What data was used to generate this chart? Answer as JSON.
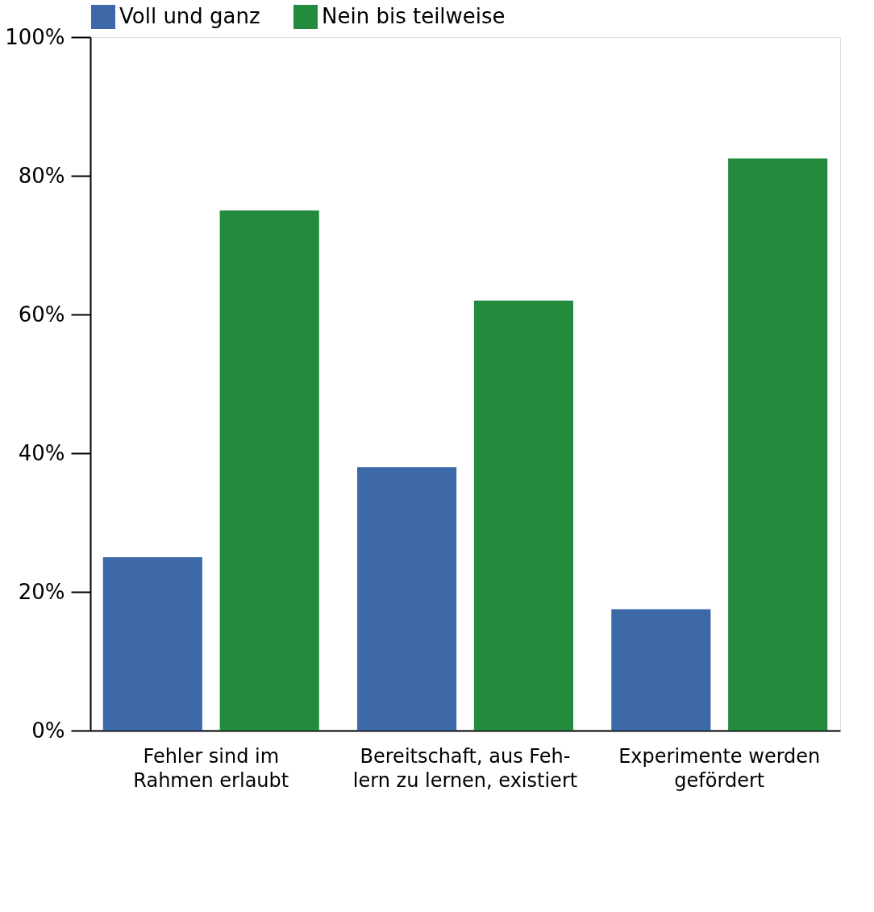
{
  "chart_data": {
    "type": "bar",
    "categories": [
      "Fehler sind im\nRahmen erlaubt",
      "Bereitschaft, aus Feh-\nlern zu lernen, existiert",
      "Experimente werden\ngefördert"
    ],
    "series": [
      {
        "name": "Voll und ganz",
        "color": "#3e69a8",
        "values": [
          25,
          38,
          17.5
        ]
      },
      {
        "name": "Nein bis teilweise",
        "color": "#238a3e",
        "values": [
          75,
          62,
          82.5
        ]
      }
    ],
    "ylim": [
      0,
      100
    ],
    "yticks": [
      {
        "value": 0,
        "label": "0%"
      },
      {
        "value": 20,
        "label": "20%"
      },
      {
        "value": 40,
        "label": "40%"
      },
      {
        "value": 60,
        "label": "60%"
      },
      {
        "value": 80,
        "label": "80%"
      },
      {
        "value": 100,
        "label": "100%"
      }
    ],
    "grid": false,
    "legend": "top left"
  }
}
